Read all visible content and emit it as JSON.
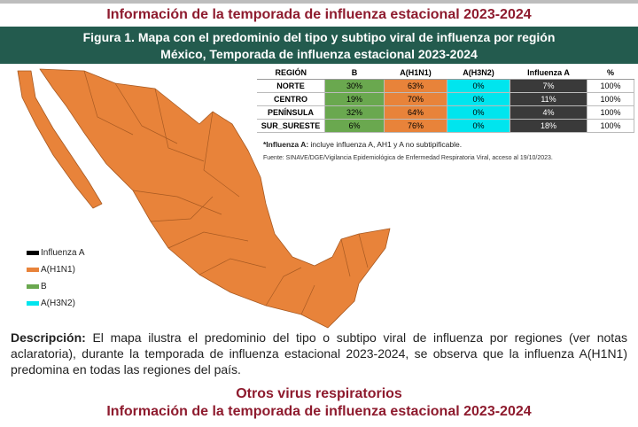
{
  "header": {
    "title": "Información de la temporada de influenza estacional 2023-2024"
  },
  "figure": {
    "title_line1": "Figura 1. Mapa con el predominio del tipo y subtipo viral de influenza por región",
    "title_line2": "México, Temporada de influenza estacional 2023-2024"
  },
  "table": {
    "columns": [
      "REGIÓN",
      "B",
      "A(H1N1)",
      "A(H3N2)",
      "Influenza A",
      "%"
    ],
    "rows": [
      [
        "NORTE",
        "30%",
        "63%",
        "0%",
        "7%",
        "100%"
      ],
      [
        "CENTRO",
        "19%",
        "70%",
        "0%",
        "11%",
        "100%"
      ],
      [
        "PENÍNSULA",
        "32%",
        "64%",
        "0%",
        "4%",
        "100%"
      ],
      [
        "SUR_SURESTE",
        "6%",
        "76%",
        "0%",
        "18%",
        "100%"
      ]
    ]
  },
  "notes": {
    "note_bold": "*Influenza A:",
    "note_text": " incluye influenza A, AH1 y A no subtipificable.",
    "source": "Fuente: SINAVE/DGE/Vigilancia Epidemiológica de Enfermedad Respiratoria Viral, acceso al 19/10/2023."
  },
  "legend": [
    "Influenza A",
    "A(H1N1)",
    "B",
    "A(H3N2)"
  ],
  "description": {
    "label": "Descripción:",
    "text": " El mapa ilustra el predominio del tipo o subtipo viral de influenza por regiones (ver notas aclaratoria), durante la temporada de influenza estacional 2023-2024, se observa que la influenza A(H1N1) predomina en todas las regiones del país."
  },
  "footer": {
    "subtitle": "Otros virus respiratorios",
    "title": "Información de la temporada de influenza estacional 2023-2024"
  }
}
